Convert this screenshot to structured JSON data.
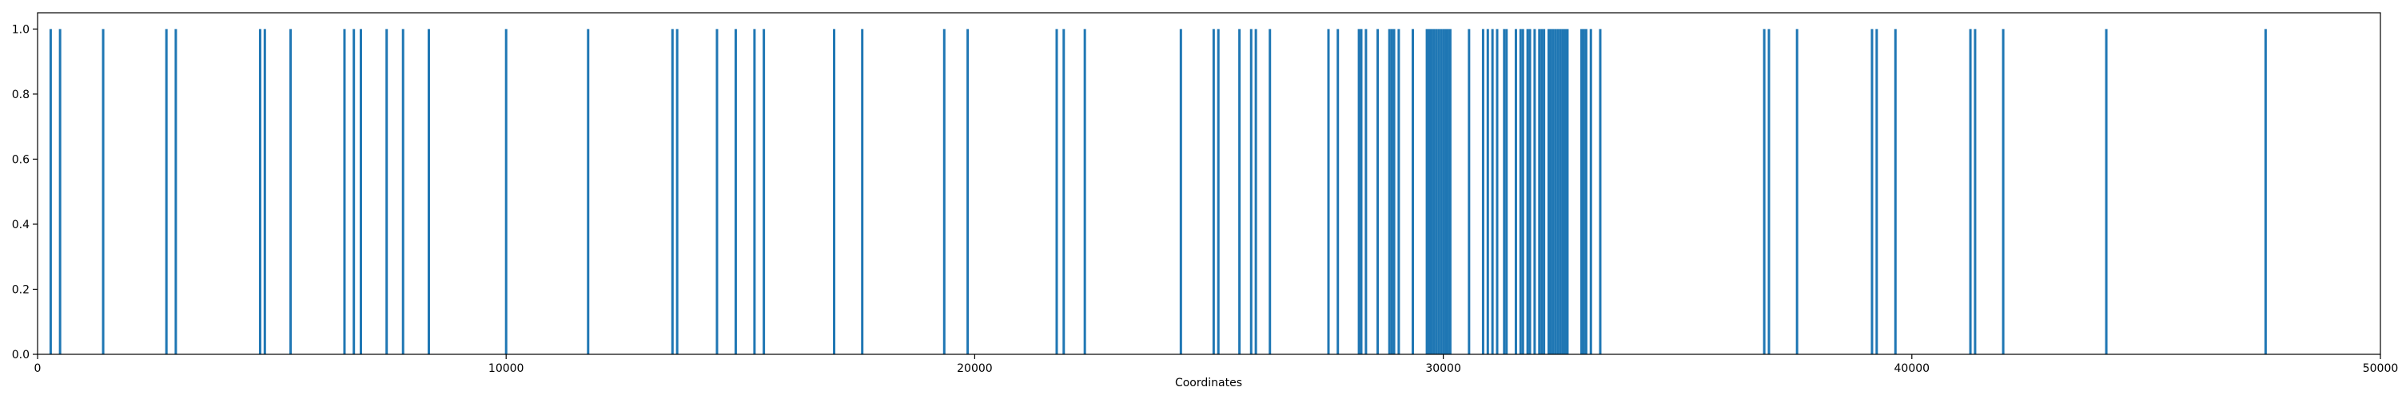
{
  "chart_data": {
    "type": "bar",
    "title": "",
    "xlabel": "Coordinates",
    "ylabel": "",
    "xlim": [
      0,
      50000
    ],
    "ylim": [
      0,
      1.05
    ],
    "grid": false,
    "bar_color": "#1f77b4",
    "bar_value": 1.0,
    "x_ticks": [
      {
        "value": 0,
        "label": "0"
      },
      {
        "value": 10000,
        "label": "10000"
      },
      {
        "value": 20000,
        "label": "20000"
      },
      {
        "value": 30000,
        "label": "30000"
      },
      {
        "value": 40000,
        "label": "40000"
      },
      {
        "value": 50000,
        "label": "50000"
      }
    ],
    "y_ticks": [
      {
        "value": 0.0,
        "label": "0.0"
      },
      {
        "value": 0.2,
        "label": "0.2"
      },
      {
        "value": 0.4,
        "label": "0.4"
      },
      {
        "value": 0.6,
        "label": "0.6"
      },
      {
        "value": 0.8,
        "label": "0.8"
      },
      {
        "value": 1.0,
        "label": "1.0"
      }
    ],
    "x": [
      280,
      480,
      1400,
      2750,
      2950,
      4750,
      4850,
      5400,
      6550,
      6750,
      6900,
      7450,
      7800,
      8350,
      10000,
      11750,
      13550,
      13650,
      14500,
      14900,
      15300,
      15500,
      17000,
      17600,
      19350,
      19850,
      21750,
      21900,
      22350,
      24400,
      25100,
      25200,
      25650,
      25900,
      26000,
      26300,
      27550,
      27750,
      28200,
      28250,
      28350,
      28600,
      28850,
      28900,
      28950,
      29050,
      29350,
      29650,
      29700,
      29750,
      29800,
      29850,
      29900,
      29950,
      30000,
      30050,
      30100,
      30150,
      30550,
      30850,
      30950,
      31050,
      31150,
      31300,
      31350,
      31550,
      31650,
      31700,
      31800,
      31850,
      31950,
      32050,
      32100,
      32150,
      32250,
      32300,
      32350,
      32400,
      32450,
      32500,
      32550,
      32600,
      32650,
      32950,
      33000,
      33050,
      33150,
      33350,
      36850,
      36950,
      37550,
      39150,
      39250,
      39650,
      41250,
      41350,
      41950,
      44150,
      47550
    ]
  }
}
